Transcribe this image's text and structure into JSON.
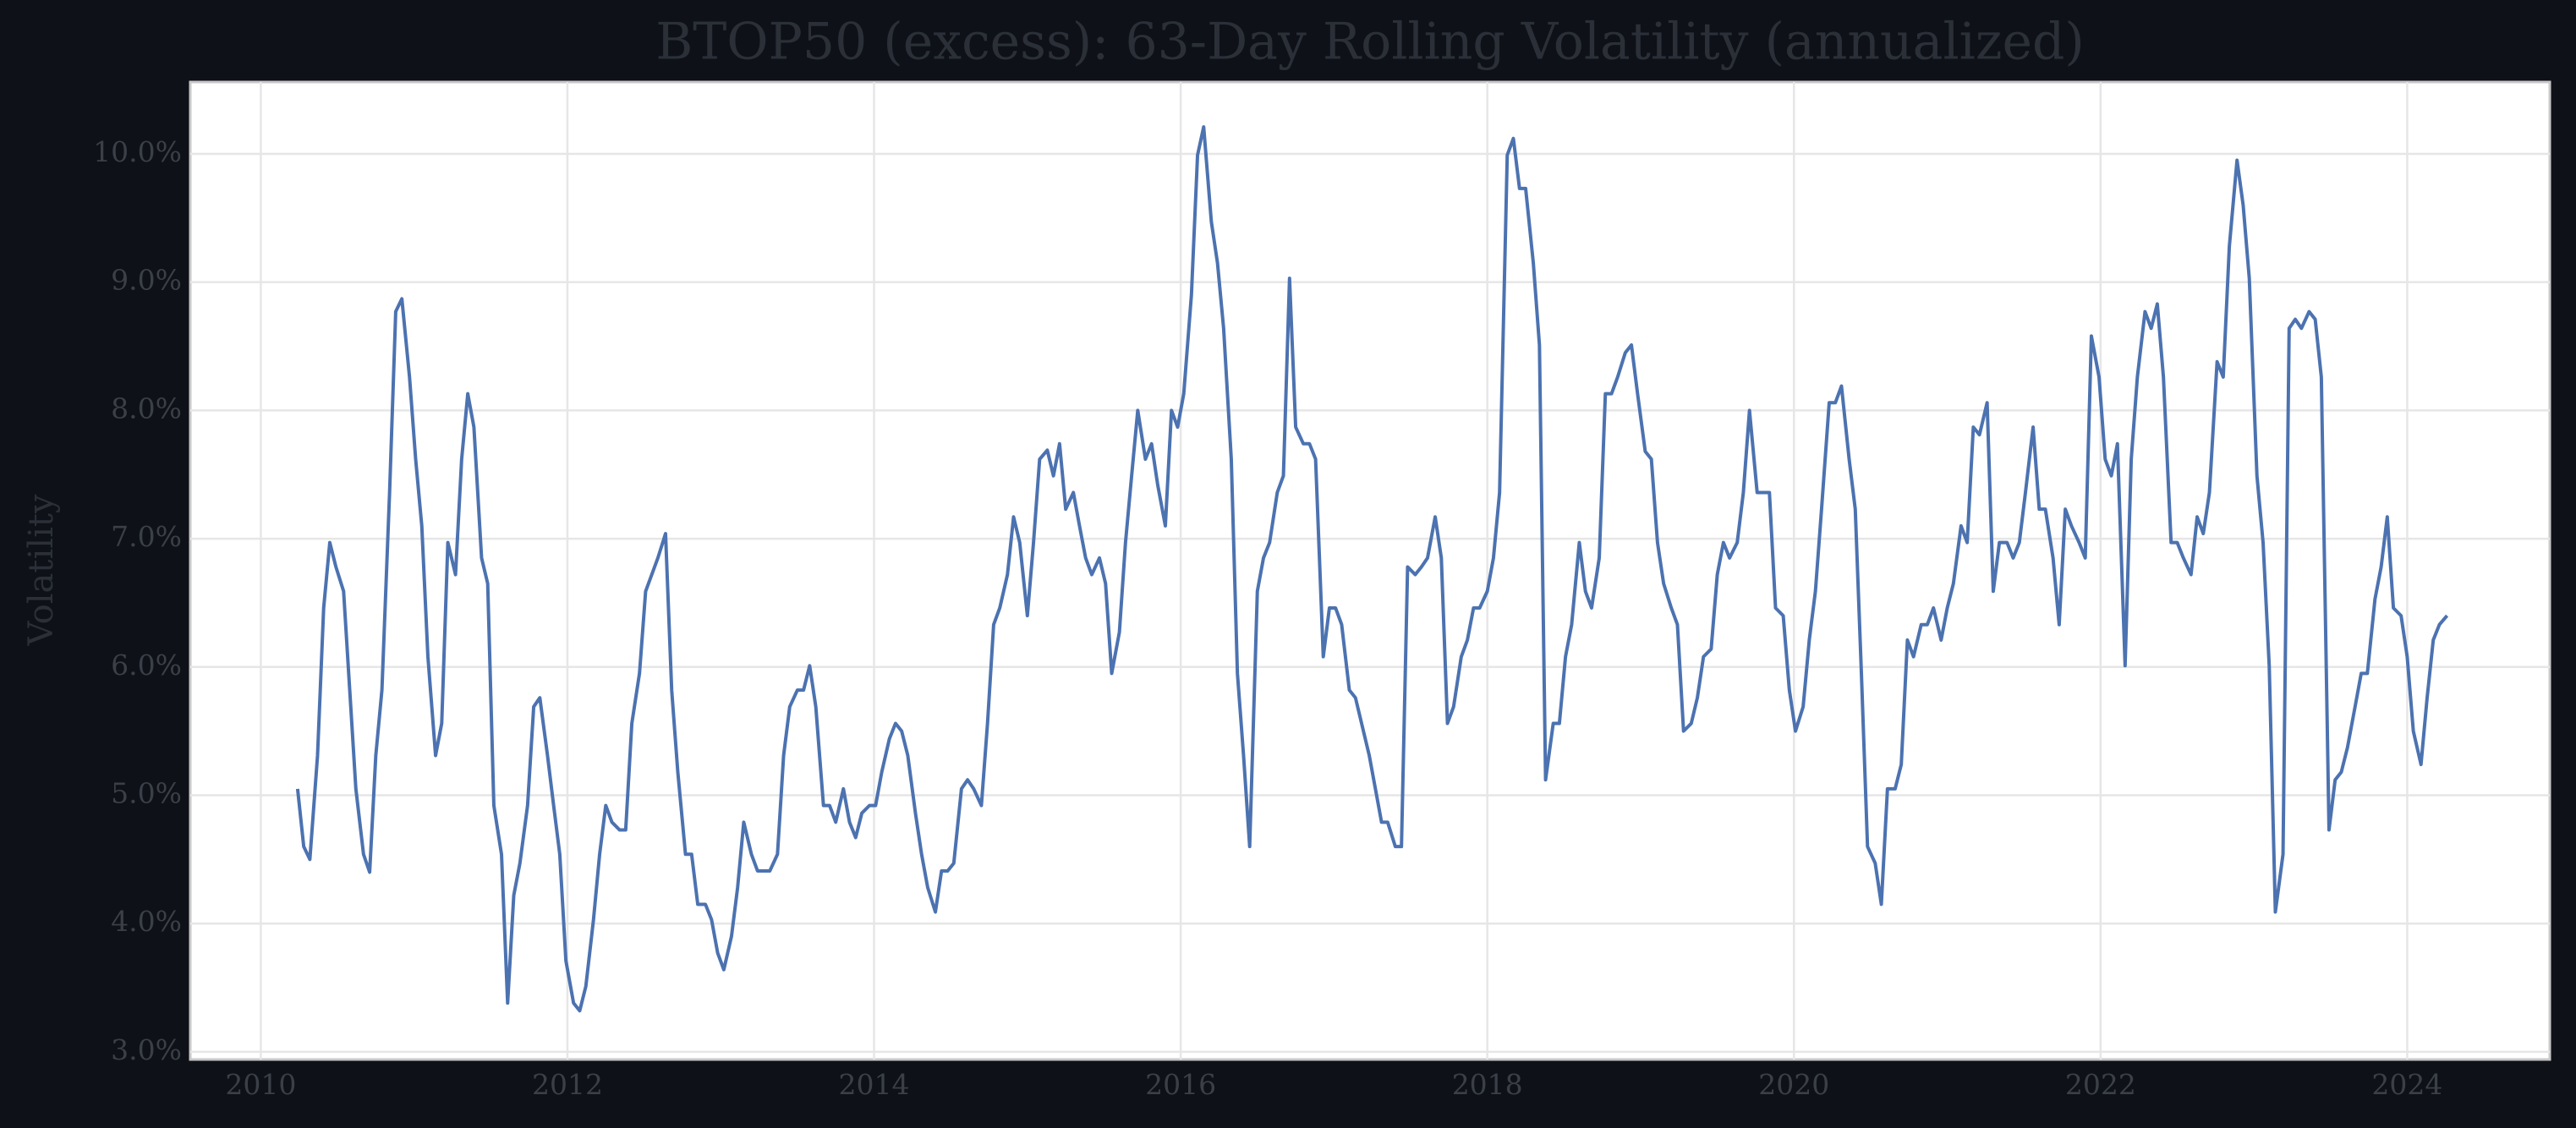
{
  "chart_data": {
    "type": "line",
    "title": "BTOP50 (excess): 63-Day Rolling Volatility (annualized)",
    "y_label": "Volatility",
    "color": "#4c72b0",
    "grid": true,
    "xlim": [
      2009.54,
      2024.93
    ],
    "xticks": [
      2010,
      2012,
      2014,
      2016,
      2018,
      2020,
      2022,
      2024
    ],
    "ylim": [
      2.94,
      10.56
    ],
    "yticks": [
      {
        "value": 3,
        "label": "3.0%"
      },
      {
        "value": 4,
        "label": "4.0%"
      },
      {
        "value": 5,
        "label": "5.0%"
      },
      {
        "value": 6,
        "label": "6.0%"
      },
      {
        "value": 7,
        "label": "7.0%"
      },
      {
        "value": 8,
        "label": "8.0%"
      },
      {
        "value": 9,
        "label": "9.0%"
      },
      {
        "value": 10,
        "label": "10.0%"
      }
    ],
    "x": [
      2010.24,
      2010.28,
      2010.32,
      2010.37,
      2010.41,
      2010.45,
      2010.49,
      2010.54,
      2010.58,
      2010.62,
      2010.67,
      2010.71,
      2010.75,
      2010.79,
      2010.84,
      2010.88,
      2010.92,
      2010.97,
      2011.01,
      2011.05,
      2011.09,
      2011.14,
      2011.18,
      2011.22,
      2011.27,
      2011.31,
      2011.35,
      2011.39,
      2011.44,
      2011.48,
      2011.52,
      2011.57,
      2011.61,
      2011.65,
      2011.69,
      2011.74,
      2011.78,
      2011.82,
      2011.87,
      2011.91,
      2011.95,
      2011.99,
      2012.04,
      2012.08,
      2012.12,
      2012.17,
      2012.21,
      2012.25,
      2012.29,
      2012.34,
      2012.38,
      2012.42,
      2012.47,
      2012.51,
      2012.55,
      2012.59,
      2012.64,
      2012.68,
      2012.72,
      2012.77,
      2012.81,
      2012.85,
      2012.9,
      2012.94,
      2012.98,
      2013.02,
      2013.07,
      2013.11,
      2013.15,
      2013.2,
      2013.24,
      2013.28,
      2013.32,
      2013.37,
      2013.41,
      2013.45,
      2013.5,
      2013.54,
      2013.58,
      2013.62,
      2013.67,
      2013.71,
      2013.75,
      2013.8,
      2013.84,
      2013.88,
      2013.92,
      2013.97,
      2014.01,
      2014.05,
      2014.1,
      2014.14,
      2014.18,
      2014.22,
      2014.27,
      2014.31,
      2014.35,
      2014.4,
      2014.44,
      2014.48,
      2014.52,
      2014.57,
      2014.61,
      2014.65,
      2014.7,
      2014.74,
      2014.78,
      2014.82,
      2014.87,
      2014.91,
      2014.95,
      2015.0,
      2015.04,
      2015.08,
      2015.13,
      2015.17,
      2015.21,
      2015.25,
      2015.3,
      2015.34,
      2015.38,
      2015.42,
      2015.47,
      2015.51,
      2015.55,
      2015.6,
      2015.64,
      2015.68,
      2015.72,
      2015.77,
      2015.81,
      2015.85,
      2015.9,
      2015.94,
      2015.98,
      2016.02,
      2016.07,
      2016.11,
      2016.15,
      2016.2,
      2016.24,
      2016.28,
      2016.33,
      2016.37,
      2016.41,
      2016.45,
      2016.5,
      2016.54,
      2016.58,
      2016.63,
      2016.67,
      2016.71,
      2016.75,
      2016.8,
      2016.84,
      2016.88,
      2016.93,
      2016.97,
      2017.01,
      2017.05,
      2017.1,
      2017.14,
      2017.18,
      2017.23,
      2017.27,
      2017.31,
      2017.35,
      2017.4,
      2017.44,
      2017.48,
      2017.53,
      2017.57,
      2017.61,
      2017.66,
      2017.7,
      2017.74,
      2017.78,
      2017.83,
      2017.87,
      2017.91,
      2017.95,
      2018.0,
      2018.04,
      2018.08,
      2018.13,
      2018.17,
      2018.21,
      2018.25,
      2018.3,
      2018.34,
      2018.38,
      2018.43,
      2018.47,
      2018.51,
      2018.55,
      2018.6,
      2018.64,
      2018.68,
      2018.73,
      2018.77,
      2018.81,
      2018.85,
      2018.9,
      2018.94,
      2018.98,
      2019.03,
      2019.07,
      2019.11,
      2019.15,
      2019.2,
      2019.24,
      2019.28,
      2019.33,
      2019.37,
      2019.41,
      2019.46,
      2019.5,
      2019.54,
      2019.58,
      2019.63,
      2019.67,
      2019.71,
      2019.76,
      2019.8,
      2019.84,
      2019.88,
      2019.93,
      2019.97,
      2020.01,
      2020.06,
      2020.1,
      2020.14,
      2020.18,
      2020.23,
      2020.27,
      2020.31,
      2020.36,
      2020.4,
      2020.44,
      2020.48,
      2020.53,
      2020.57,
      2020.61,
      2020.66,
      2020.7,
      2020.74,
      2020.78,
      2020.83,
      2020.87,
      2020.91,
      2020.96,
      2021.0,
      2021.04,
      2021.09,
      2021.13,
      2021.17,
      2021.21,
      2021.26,
      2021.3,
      2021.34,
      2021.39,
      2021.43,
      2021.47,
      2021.51,
      2021.56,
      2021.6,
      2021.64,
      2021.69,
      2021.73,
      2021.77,
      2021.81,
      2021.86,
      2021.9,
      2021.94,
      2021.99,
      2022.03,
      2022.07,
      2022.11,
      2022.16,
      2022.2,
      2022.24,
      2022.29,
      2022.33,
      2022.37,
      2022.41,
      2022.46,
      2022.5,
      2022.54,
      2022.59,
      2022.63,
      2022.67,
      2022.71,
      2022.76,
      2022.8,
      2022.84,
      2022.89,
      2022.93,
      2022.97,
      2023.02,
      2023.06,
      2023.1,
      2023.14,
      2023.19,
      2023.23,
      2023.27,
      2023.31,
      2023.36,
      2023.4,
      2023.44,
      2023.49,
      2023.53,
      2023.57,
      2023.61,
      2023.66,
      2023.7,
      2023.74,
      2023.79,
      2023.83,
      2023.87,
      2023.91,
      2023.96,
      2024.0,
      2024.04,
      2024.09,
      2024.13,
      2024.17,
      2024.21,
      2024.26
    ],
    "values": [
      5.05,
      4.6,
      4.5,
      5.31,
      6.46,
      6.97,
      6.78,
      6.59,
      5.82,
      5.05,
      4.54,
      4.4,
      5.31,
      5.82,
      7.36,
      8.77,
      8.87,
      8.26,
      7.62,
      7.1,
      6.08,
      5.31,
      5.56,
      6.97,
      6.72,
      7.62,
      8.13,
      7.87,
      6.85,
      6.65,
      4.92,
      4.54,
      3.38,
      4.22,
      4.47,
      4.92,
      5.69,
      5.76,
      5.31,
      4.92,
      4.54,
      3.71,
      3.38,
      3.32,
      3.51,
      4.03,
      4.54,
      4.92,
      4.79,
      4.73,
      4.73,
      5.56,
      5.95,
      6.59,
      6.72,
      6.85,
      7.04,
      5.82,
      5.18,
      4.54,
      4.54,
      4.15,
      4.15,
      4.03,
      3.77,
      3.64,
      3.9,
      4.28,
      4.79,
      4.54,
      4.41,
      4.41,
      4.41,
      4.54,
      5.31,
      5.69,
      5.82,
      5.82,
      6.01,
      5.69,
      4.92,
      4.92,
      4.79,
      5.05,
      4.79,
      4.67,
      4.86,
      4.92,
      4.92,
      5.18,
      5.44,
      5.56,
      5.5,
      5.31,
      4.86,
      4.54,
      4.28,
      4.09,
      4.41,
      4.41,
      4.47,
      5.05,
      5.12,
      5.05,
      4.92,
      5.56,
      6.33,
      6.46,
      6.72,
      7.17,
      6.97,
      6.4,
      6.97,
      7.62,
      7.69,
      7.49,
      7.74,
      7.23,
      7.36,
      7.1,
      6.85,
      6.72,
      6.85,
      6.65,
      5.95,
      6.27,
      6.97,
      7.49,
      8.0,
      7.62,
      7.74,
      7.42,
      7.1,
      8.0,
      7.87,
      8.13,
      8.9,
      9.99,
      10.21,
      9.47,
      9.15,
      8.64,
      7.62,
      5.95,
      5.31,
      4.6,
      6.59,
      6.85,
      6.97,
      7.36,
      7.49,
      9.03,
      7.87,
      7.74,
      7.74,
      7.62,
      6.08,
      6.46,
      6.46,
      6.33,
      5.82,
      5.76,
      5.56,
      5.31,
      5.05,
      4.79,
      4.79,
      4.6,
      4.6,
      6.78,
      6.72,
      6.78,
      6.85,
      7.17,
      6.85,
      5.56,
      5.69,
      6.08,
      6.21,
      6.46,
      6.46,
      6.59,
      6.85,
      7.36,
      9.99,
      10.12,
      9.73,
      9.73,
      9.15,
      8.51,
      5.12,
      5.56,
      5.56,
      6.08,
      6.33,
      6.97,
      6.59,
      6.46,
      6.85,
      8.13,
      8.13,
      8.26,
      8.45,
      8.51,
      8.13,
      7.68,
      7.62,
      6.97,
      6.65,
      6.46,
      6.33,
      5.5,
      5.56,
      5.76,
      6.08,
      6.14,
      6.72,
      6.97,
      6.85,
      6.97,
      7.36,
      8.0,
      7.36,
      7.36,
      7.36,
      6.46,
      6.4,
      5.82,
      5.5,
      5.69,
      6.21,
      6.59,
      7.23,
      8.06,
      8.06,
      8.19,
      7.62,
      7.23,
      5.95,
      4.6,
      4.47,
      4.15,
      5.05,
      5.05,
      5.24,
      6.21,
      6.08,
      6.33,
      6.33,
      6.46,
      6.21,
      6.46,
      6.65,
      7.1,
      6.97,
      7.87,
      7.81,
      8.06,
      6.59,
      6.97,
      6.97,
      6.85,
      6.97,
      7.36,
      7.87,
      7.23,
      7.23,
      6.85,
      6.33,
      7.23,
      7.1,
      6.97,
      6.85,
      8.58,
      8.26,
      7.62,
      7.49,
      7.74,
      6.01,
      7.62,
      8.26,
      8.77,
      8.64,
      8.83,
      8.26,
      6.97,
      6.97,
      6.85,
      6.72,
      7.17,
      7.04,
      7.36,
      8.38,
      8.26,
      9.28,
      9.95,
      9.6,
      9.03,
      7.49,
      6.97,
      6.01,
      4.09,
      4.54,
      8.64,
      8.71,
      8.64,
      8.77,
      8.71,
      8.26,
      4.73,
      5.12,
      5.18,
      5.37,
      5.69,
      5.95,
      5.95,
      6.53,
      6.78,
      7.17,
      6.46,
      6.4,
      6.08,
      5.5,
      5.24,
      5.76,
      6.21,
      6.33,
      6.4
    ]
  }
}
